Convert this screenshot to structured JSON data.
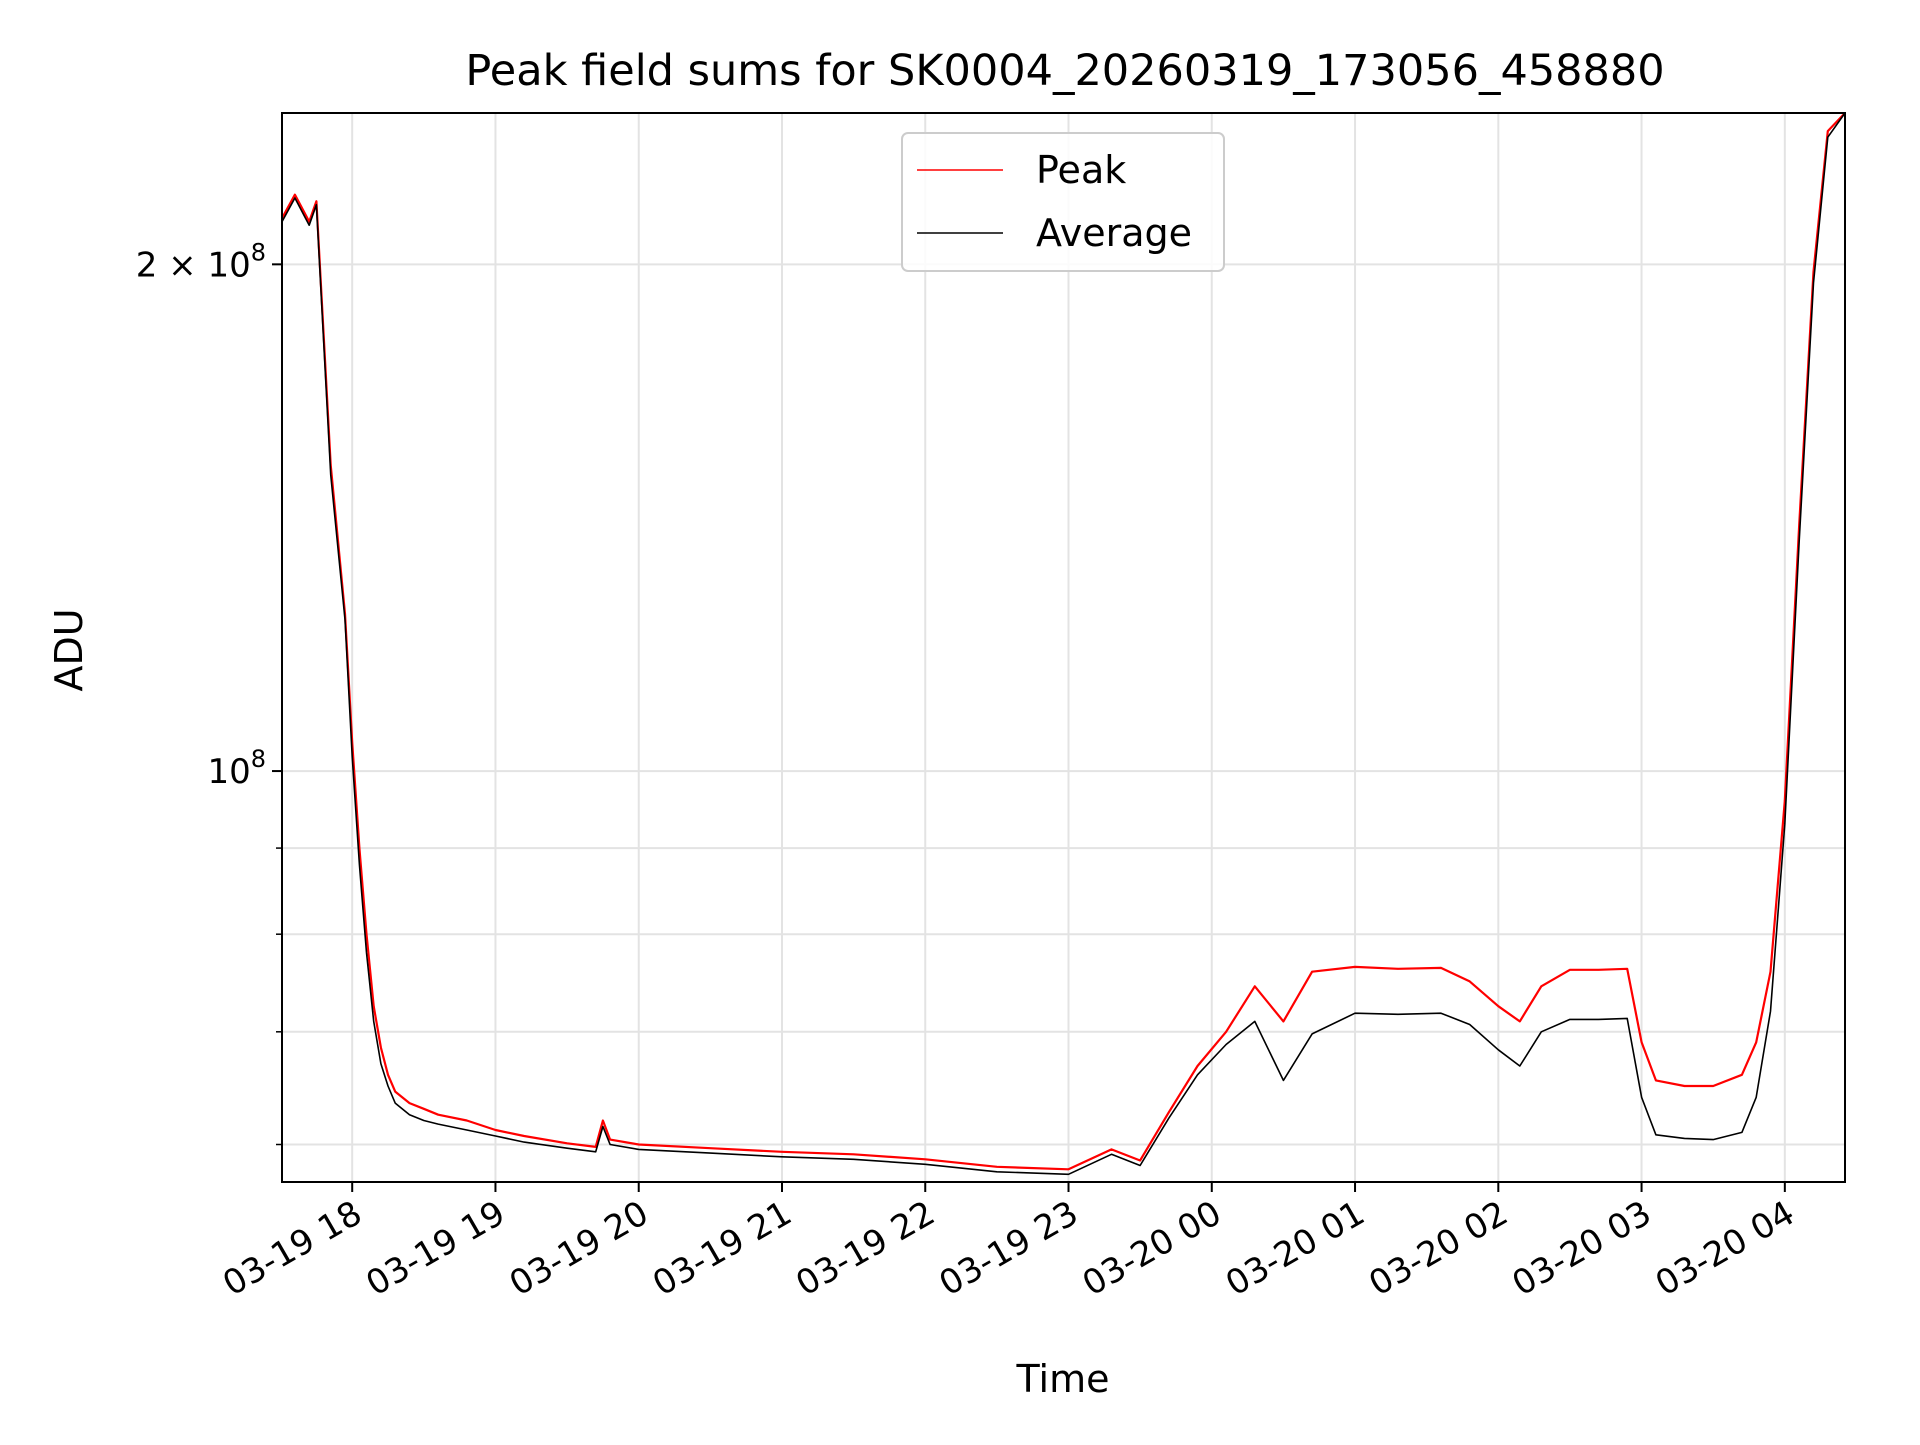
{
  "chart_data": {
    "type": "line",
    "title": "Peak field sums for SK0004_20260319_173056_458880",
    "xlabel": "Time",
    "ylabel": "ADU",
    "yscale": "log",
    "ylim": [
      57000000,
      246000000
    ],
    "xlim": [
      -0.49,
      10.42
    ],
    "x_units": "hours since 03-19 18:00",
    "x_ticks": [
      {
        "value": 0,
        "label": "03-19 18"
      },
      {
        "value": 1,
        "label": "03-19 19"
      },
      {
        "value": 2,
        "label": "03-19 20"
      },
      {
        "value": 3,
        "label": "03-19 21"
      },
      {
        "value": 4,
        "label": "03-19 22"
      },
      {
        "value": 5,
        "label": "03-19 23"
      },
      {
        "value": 6,
        "label": "03-20 00"
      },
      {
        "value": 7,
        "label": "03-20 01"
      },
      {
        "value": 8,
        "label": "03-20 02"
      },
      {
        "value": 9,
        "label": "03-20 03"
      },
      {
        "value": 10,
        "label": "03-20 04"
      }
    ],
    "y_major_ticks": [
      {
        "value": 100000000,
        "base": "10",
        "exp": "8"
      },
      {
        "value": 200000000,
        "base": "2 × 10",
        "exp": "8"
      }
    ],
    "y_minor_ticks": [
      60000000,
      70000000,
      80000000,
      90000000
    ],
    "grid": true,
    "legend": {
      "position": "upper-center"
    },
    "series": [
      {
        "name": "Average",
        "color": "#000000",
        "x": [
          -0.49,
          -0.4,
          -0.3,
          -0.25,
          -0.15,
          -0.05,
          0.0,
          0.05,
          0.1,
          0.15,
          0.2,
          0.25,
          0.3,
          0.4,
          0.5,
          0.6,
          0.8,
          1.0,
          1.2,
          1.5,
          1.7,
          1.75,
          1.8,
          2.0,
          2.5,
          3.0,
          3.5,
          4.0,
          4.5,
          5.0,
          5.3,
          5.5,
          5.7,
          5.9,
          6.1,
          6.3,
          6.5,
          6.7,
          7.0,
          7.3,
          7.6,
          7.8,
          8.0,
          8.15,
          8.3,
          8.5,
          8.7,
          8.9,
          9.0,
          9.1,
          9.3,
          9.5,
          9.7,
          9.8,
          9.9,
          10.0,
          10.1,
          10.2,
          10.3,
          10.42
        ],
        "y": [
          212000000,
          219000000,
          211000000,
          217000000,
          150000000,
          123000000,
          102000000,
          88000000,
          78000000,
          71000000,
          67000000,
          65000000,
          63500000,
          62500000,
          62000000,
          61700000,
          61200000,
          60700000,
          60200000,
          59700000,
          59400000,
          61500000,
          60000000,
          59600000,
          59300000,
          59000000,
          58800000,
          58400000,
          57800000,
          57600000,
          59200000,
          58300000,
          62200000,
          66000000,
          68800000,
          71000000,
          65500000,
          69800000,
          71800000,
          71700000,
          71800000,
          70700000,
          68300000,
          66800000,
          70000000,
          71200000,
          71200000,
          71300000,
          64000000,
          60800000,
          60500000,
          60400000,
          61000000,
          64000000,
          72000000,
          93000000,
          137000000,
          195000000,
          238000000,
          246000000
        ]
      },
      {
        "name": "Peak",
        "color": "#ff0000",
        "x": [
          -0.49,
          -0.4,
          -0.3,
          -0.25,
          -0.15,
          -0.05,
          0.0,
          0.05,
          0.1,
          0.15,
          0.2,
          0.25,
          0.3,
          0.4,
          0.5,
          0.6,
          0.8,
          1.0,
          1.2,
          1.5,
          1.7,
          1.75,
          1.8,
          2.0,
          2.5,
          3.0,
          3.5,
          4.0,
          4.5,
          5.0,
          5.3,
          5.5,
          5.7,
          5.9,
          6.1,
          6.3,
          6.5,
          6.7,
          7.0,
          7.3,
          7.6,
          7.8,
          8.0,
          8.15,
          8.3,
          8.5,
          8.7,
          8.9,
          9.0,
          9.1,
          9.3,
          9.5,
          9.7,
          9.8,
          9.9,
          10.0,
          10.1,
          10.2,
          10.3,
          10.42
        ],
        "y": [
          213000000,
          220000000,
          212000000,
          218000000,
          152000000,
          124000000,
          104000000,
          90000000,
          80000000,
          72500000,
          68500000,
          66000000,
          64500000,
          63500000,
          63000000,
          62500000,
          62000000,
          61200000,
          60700000,
          60100000,
          59800000,
          62000000,
          60400000,
          60000000,
          59700000,
          59400000,
          59200000,
          58800000,
          58200000,
          58000000,
          59600000,
          58700000,
          62700000,
          66800000,
          70000000,
          74500000,
          71000000,
          76000000,
          76500000,
          76300000,
          76400000,
          75000000,
          72500000,
          71000000,
          74500000,
          76200000,
          76200000,
          76300000,
          69000000,
          65500000,
          65000000,
          65000000,
          66000000,
          69000000,
          76000000,
          96000000,
          140000000,
          198000000,
          240000000,
          246000000
        ]
      }
    ],
    "annotations": []
  }
}
